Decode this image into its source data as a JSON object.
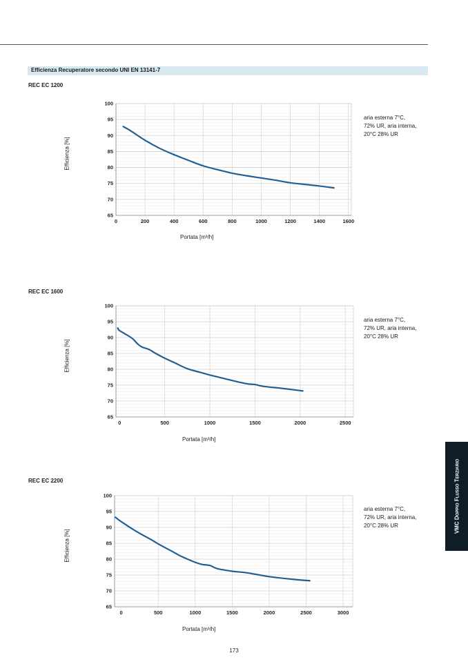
{
  "section_title": "Efficienza Recuperatore secondo UNI EN 13141-7",
  "side_tab": "VMC Doppio Flusso Terziario",
  "page_number": "173",
  "line_color": "#1f5f95",
  "chart_data": [
    {
      "type": "line",
      "title": "REC EC 1200",
      "xlabel": "Portata [m³/h]",
      "ylabel": "Efficienza [%]",
      "note": [
        "aria esterna 7°C,",
        "72% UR, aria interna,",
        "20°C 28% UR"
      ],
      "xlim": [
        0,
        1620
      ],
      "ylim": [
        65,
        100
      ],
      "xticks": [
        0,
        200,
        400,
        600,
        800,
        1000,
        1200,
        1400,
        1600
      ],
      "yticks": [
        65,
        70,
        75,
        80,
        85,
        90,
        95,
        100
      ],
      "grid": true,
      "x": [
        50,
        100,
        200,
        300,
        400,
        500,
        600,
        700,
        800,
        900,
        1000,
        1100,
        1200,
        1300,
        1400,
        1500
      ],
      "y": [
        92.8,
        91.5,
        88.5,
        86.0,
        84.0,
        82.2,
        80.5,
        79.3,
        78.2,
        77.4,
        76.7,
        76.0,
        75.2,
        74.7,
        74.2,
        73.6
      ]
    },
    {
      "type": "line",
      "title": "REC EC 1600",
      "xlabel": "Portata [m³/h]",
      "ylabel": "Efficienza [%]",
      "note": [
        "aria esterna 7°C,",
        "72% UR, aria interna,",
        "20°C 28% UR"
      ],
      "xlim": [
        -40,
        2590
      ],
      "ylim": [
        65,
        100
      ],
      "xticks": [
        0,
        500,
        1000,
        1500,
        2000,
        2500
      ],
      "yticks": [
        65,
        70,
        75,
        80,
        85,
        90,
        95,
        100
      ],
      "grid": true,
      "x": [
        -20,
        0,
        100,
        150,
        200,
        250,
        330,
        400,
        500,
        600,
        750,
        900,
        1000,
        1200,
        1400,
        1500,
        1600,
        1800,
        2000,
        2030
      ],
      "y": [
        93.0,
        92.2,
        90.5,
        89.5,
        88.0,
        87.0,
        86.2,
        85.0,
        83.5,
        82.2,
        80.2,
        79.0,
        78.2,
        76.8,
        75.5,
        75.2,
        74.6,
        74.0,
        73.3,
        73.2
      ]
    },
    {
      "type": "line",
      "title": "REC EC 2200",
      "xlabel": "Portata [m³/h]",
      "ylabel": "Efficienza [%]",
      "note": [
        "aria esterna 7°C,",
        "72% UR, aria interna,",
        "20°C 28% UR"
      ],
      "xlim": [
        -90,
        3130
      ],
      "ylim": [
        65,
        100
      ],
      "xticks": [
        0,
        500,
        1000,
        1500,
        2000,
        2500,
        3000
      ],
      "yticks": [
        65,
        70,
        75,
        80,
        85,
        90,
        95,
        100
      ],
      "grid": true,
      "x": [
        -80,
        0,
        200,
        400,
        500,
        700,
        800,
        1000,
        1100,
        1200,
        1300,
        1500,
        1700,
        2000,
        2300,
        2550
      ],
      "y": [
        93.2,
        91.8,
        88.8,
        86.2,
        84.8,
        82.3,
        81.0,
        79.0,
        78.3,
        78.0,
        77.0,
        76.2,
        75.7,
        74.5,
        73.7,
        73.2
      ]
    }
  ]
}
